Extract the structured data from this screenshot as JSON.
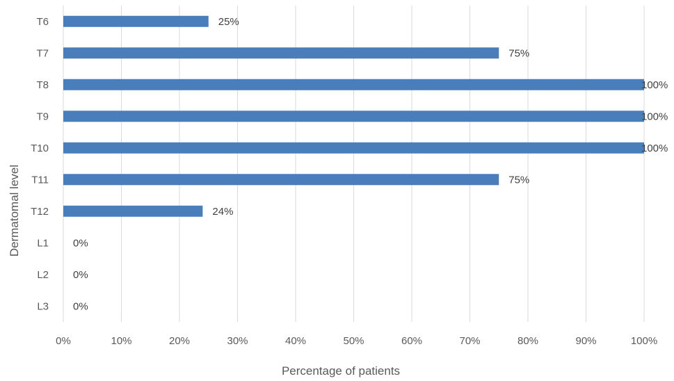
{
  "chart_data": {
    "type": "bar",
    "orientation": "horizontal",
    "categories": [
      "T6",
      "T7",
      "T8",
      "T9",
      "T10",
      "T11",
      "T12",
      "L1",
      "L2",
      "L3"
    ],
    "values": [
      25,
      75,
      100,
      100,
      100,
      75,
      24,
      0,
      0,
      0
    ],
    "value_labels": [
      "25%",
      "75%",
      "100%",
      "100%",
      "100%",
      "75%",
      "24%",
      "0%",
      "0%",
      "0%"
    ],
    "xlabel": "Percentage of patients",
    "ylabel": "Dermatomal level",
    "xlim": [
      0,
      100
    ],
    "x_ticks": [
      0,
      10,
      20,
      30,
      40,
      50,
      60,
      70,
      80,
      90,
      100
    ],
    "x_tick_labels": [
      "0%",
      "10%",
      "20%",
      "30%",
      "40%",
      "50%",
      "60%",
      "70%",
      "80%",
      "90%",
      "100%"
    ],
    "grid": "vertical",
    "legend": "none",
    "bar_color": "#4a7ebb",
    "grid_color": "#d9d9d9"
  }
}
